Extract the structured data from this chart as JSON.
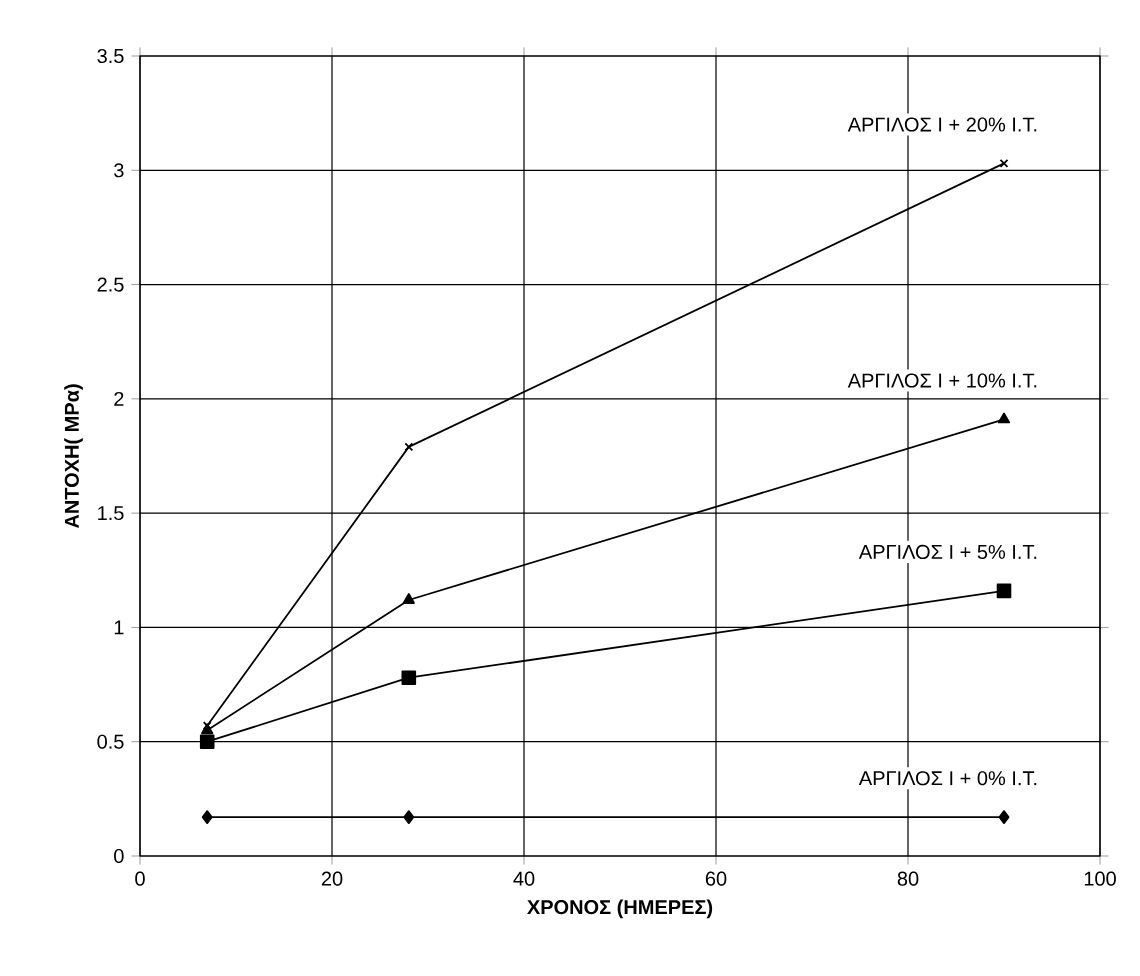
{
  "chart_data": {
    "type": "line",
    "xlabel": "ΧΡΟΝΟΣ (ΗΜΕΡΕΣ)",
    "ylabel": "ΑΝΤΟΧΗ( ΜΡα)",
    "x": [
      7,
      28,
      90
    ],
    "series": [
      {
        "name": "ΑΡΓΙΛΟΣ Ι + 0% Ι.Τ.",
        "color": "#000000",
        "marker": "diamond",
        "values": [
          0.17,
          0.17,
          0.17
        ]
      },
      {
        "name": "ΑΡΓΙΛΟΣ Ι + 5% Ι.Τ.",
        "color": "#000000",
        "marker": "square",
        "values": [
          0.5,
          0.78,
          1.16
        ]
      },
      {
        "name": "ΑΡΓΙΛΟΣ Ι + 10% Ι.Τ.",
        "color": "#000000",
        "marker": "triangle",
        "values": [
          0.55,
          1.12,
          1.91
        ]
      },
      {
        "name": "ΑΡΓΙΛΟΣ Ι + 20% Ι.Τ.",
        "color": "#000000",
        "marker": "cross",
        "values": [
          0.57,
          1.79,
          3.03
        ]
      }
    ],
    "xlim": [
      0,
      100
    ],
    "xticks": [
      0,
      20,
      40,
      60,
      80,
      100
    ],
    "ylim": [
      0,
      3.5
    ],
    "yticks": [
      0,
      0.5,
      1,
      1.5,
      2,
      2.5,
      3,
      3.5
    ],
    "grid": true,
    "line_style": "solid"
  }
}
